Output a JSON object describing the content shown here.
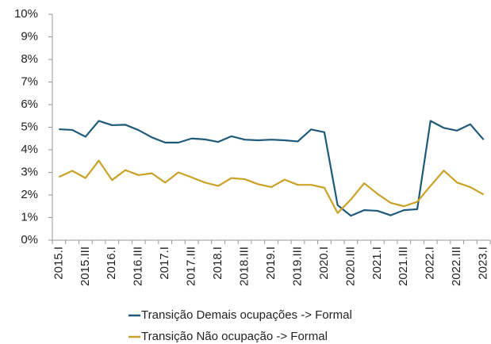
{
  "chart_data": {
    "type": "line",
    "categories": [
      "2015.I",
      null,
      "2015.III",
      null,
      "2016.I",
      null,
      "2016.III",
      null,
      "2017.I",
      null,
      "2017.III",
      null,
      "2018.I",
      null,
      "2018.III",
      null,
      "2019.I",
      null,
      "2019.III",
      null,
      "2020.I",
      null,
      "2020.III",
      null,
      "2021.I",
      null,
      "2021.III",
      null,
      "2022.I",
      null,
      "2022.III",
      null,
      "2023.I"
    ],
    "series": [
      {
        "name": "Transição Demais ocupações -> Formal",
        "color": "#1f5a7a",
        "values": [
          4.91,
          4.88,
          4.58,
          5.28,
          5.09,
          5.11,
          4.87,
          4.55,
          4.32,
          4.32,
          4.5,
          4.46,
          4.35,
          4.6,
          4.45,
          4.42,
          4.45,
          4.42,
          4.37,
          4.9,
          4.78,
          1.55,
          1.08,
          1.33,
          1.3,
          1.1,
          1.33,
          1.37,
          5.28,
          4.97,
          4.85,
          5.13,
          4.45
        ]
      },
      {
        "name": "Transição Não ocupação -> Formal",
        "color": "#c9a227",
        "values": [
          2.8,
          3.07,
          2.75,
          3.52,
          2.66,
          3.1,
          2.88,
          2.96,
          2.55,
          3.0,
          2.78,
          2.55,
          2.4,
          2.75,
          2.7,
          2.48,
          2.35,
          2.68,
          2.45,
          2.45,
          2.32,
          1.2,
          1.8,
          2.52,
          2.05,
          1.65,
          1.5,
          1.7,
          2.4,
          3.08,
          2.55,
          2.35,
          2.02
        ]
      }
    ],
    "ylim": [
      0,
      10
    ],
    "yticks": [
      {
        "value": 0,
        "label": "0%"
      },
      {
        "value": 1,
        "label": "1%"
      },
      {
        "value": 2,
        "label": "2%"
      },
      {
        "value": 3,
        "label": "3%"
      },
      {
        "value": 4,
        "label": "4%"
      },
      {
        "value": 5,
        "label": "5%"
      },
      {
        "value": 6,
        "label": "6%"
      },
      {
        "value": 7,
        "label": "7%"
      },
      {
        "value": 8,
        "label": "8%"
      },
      {
        "value": 9,
        "label": "9%"
      },
      {
        "value": 10,
        "label": "10%"
      }
    ],
    "grid": false
  }
}
